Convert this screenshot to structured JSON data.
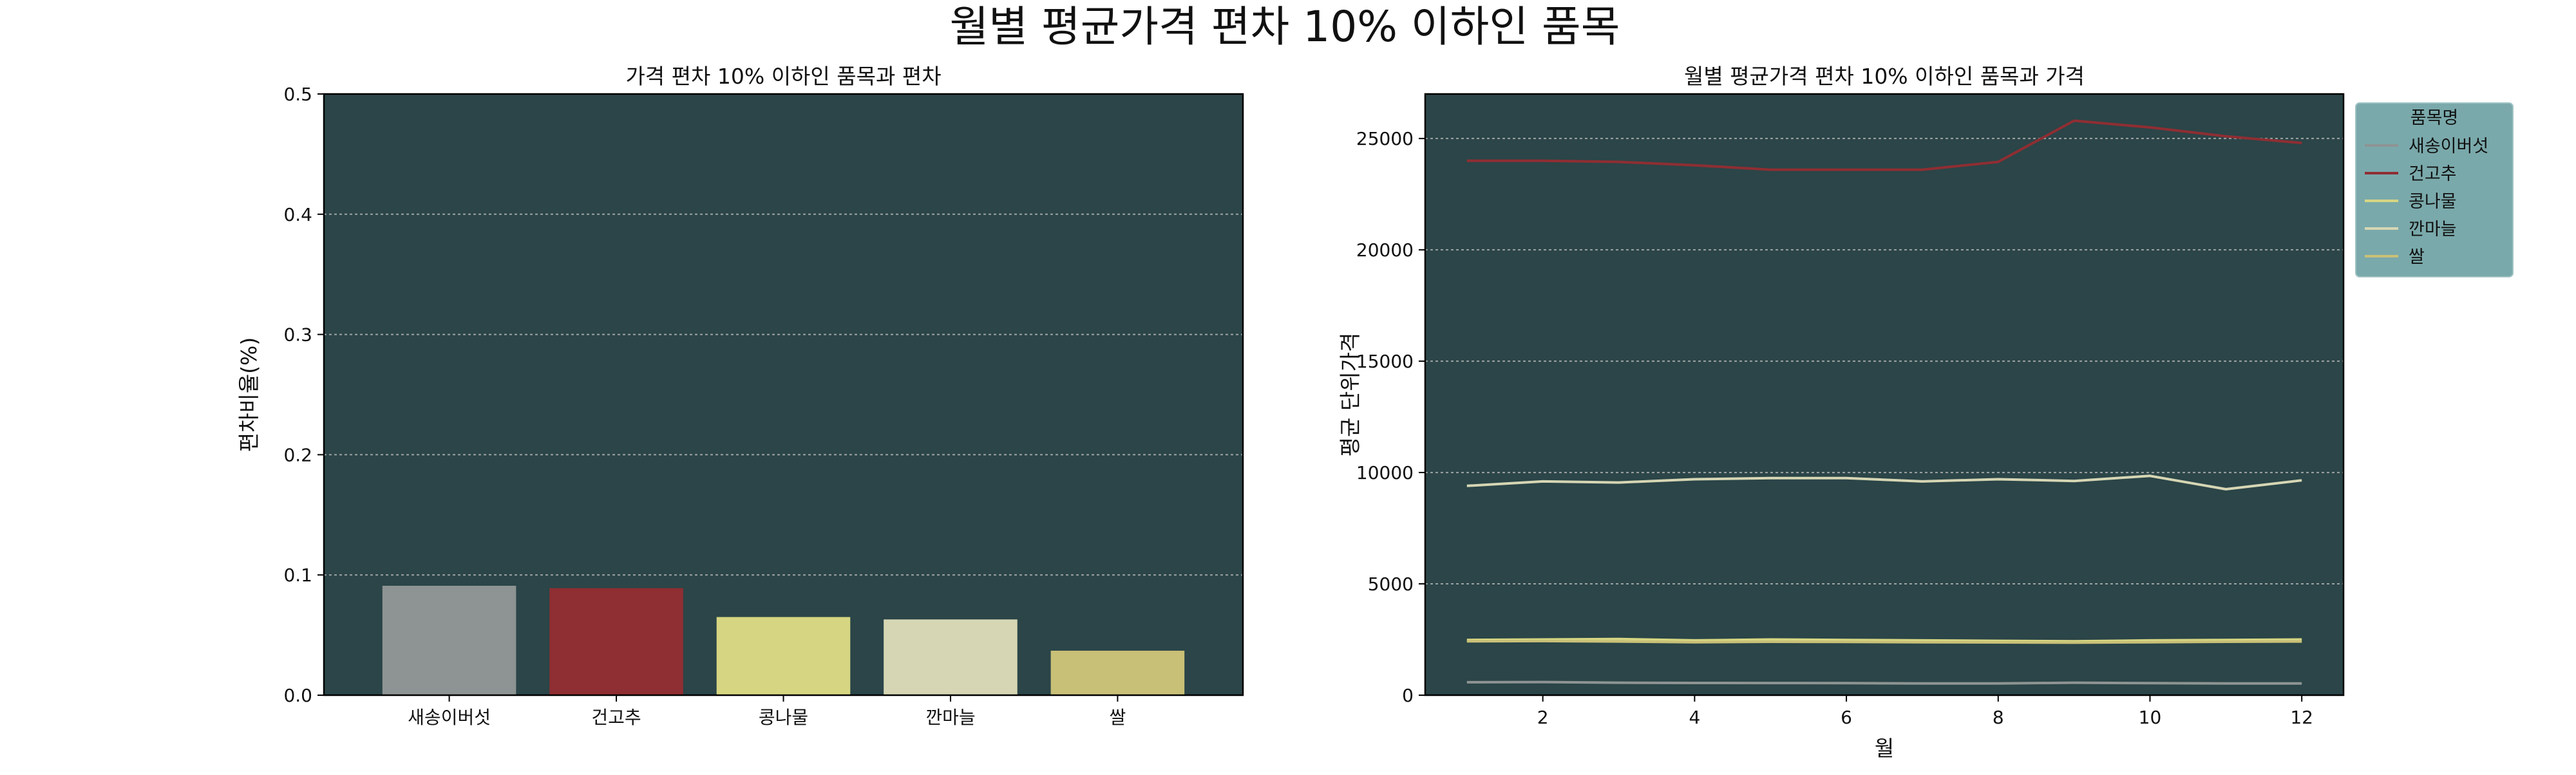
{
  "figure_title": "월별 평균가격 편차 10% 이하인 품목",
  "colors": {
    "plot_bg": "#2b4548",
    "legend_bg": "#7aa9ab",
    "grid": "#bcbcbc",
    "series": [
      "#8e9493",
      "#8f2e33",
      "#d6d682",
      "#d6d6b4",
      "#c9c077"
    ]
  },
  "chart_data": [
    {
      "type": "bar",
      "title": "가격 편차 10% 이하인 품목과 편차",
      "xlabel": "",
      "ylabel": "편차비율(%)",
      "categories": [
        "새송이버섯",
        "건고추",
        "콩나물",
        "깐마늘",
        "쌀"
      ],
      "values": [
        0.091,
        0.089,
        0.065,
        0.063,
        0.037
      ],
      "ylim": [
        0,
        0.5
      ],
      "yticks": [
        0.0,
        0.1,
        0.2,
        0.3,
        0.4,
        0.5
      ],
      "ytick_labels": [
        "0.0",
        "0.1",
        "0.2",
        "0.3",
        "0.4",
        "0.5"
      ],
      "grid": "y"
    },
    {
      "type": "line",
      "title": "월별 평균가격 편차 10% 이하인 품목과 가격",
      "xlabel": "월",
      "ylabel": "평균 단위가격",
      "x": [
        1,
        2,
        3,
        4,
        5,
        6,
        7,
        8,
        9,
        10,
        11,
        12
      ],
      "xlim": [
        0.45,
        12.55
      ],
      "ylim": [
        0,
        27000
      ],
      "xticks": [
        2,
        4,
        6,
        8,
        10,
        12
      ],
      "xtick_labels": [
        "2",
        "4",
        "6",
        "8",
        "10",
        "12"
      ],
      "yticks": [
        0,
        5000,
        10000,
        15000,
        20000,
        25000
      ],
      "ytick_labels": [
        "0",
        "5000",
        "10000",
        "15000",
        "20000",
        "25000"
      ],
      "grid": "y",
      "legend": {
        "title": "품목명",
        "placement": "outside-top-right"
      },
      "series": [
        {
          "name": "새송이버섯",
          "values": [
            580,
            590,
            560,
            550,
            545,
            540,
            530,
            525,
            560,
            540,
            530,
            525
          ]
        },
        {
          "name": "건고추",
          "values": [
            24000,
            24000,
            23950,
            23800,
            23600,
            23600,
            23600,
            23950,
            25800,
            25500,
            25100,
            24800
          ]
        },
        {
          "name": "콩나물",
          "values": [
            2480,
            2500,
            2520,
            2460,
            2500,
            2480,
            2460,
            2440,
            2420,
            2460,
            2480,
            2500
          ]
        },
        {
          "name": "깐마늘",
          "values": [
            9400,
            9600,
            9550,
            9700,
            9750,
            9750,
            9600,
            9700,
            9620,
            9850,
            9250,
            9650
          ]
        },
        {
          "name": "쌀",
          "values": [
            2420,
            2430,
            2410,
            2380,
            2400,
            2390,
            2380,
            2370,
            2360,
            2380,
            2400,
            2410
          ]
        }
      ]
    }
  ]
}
